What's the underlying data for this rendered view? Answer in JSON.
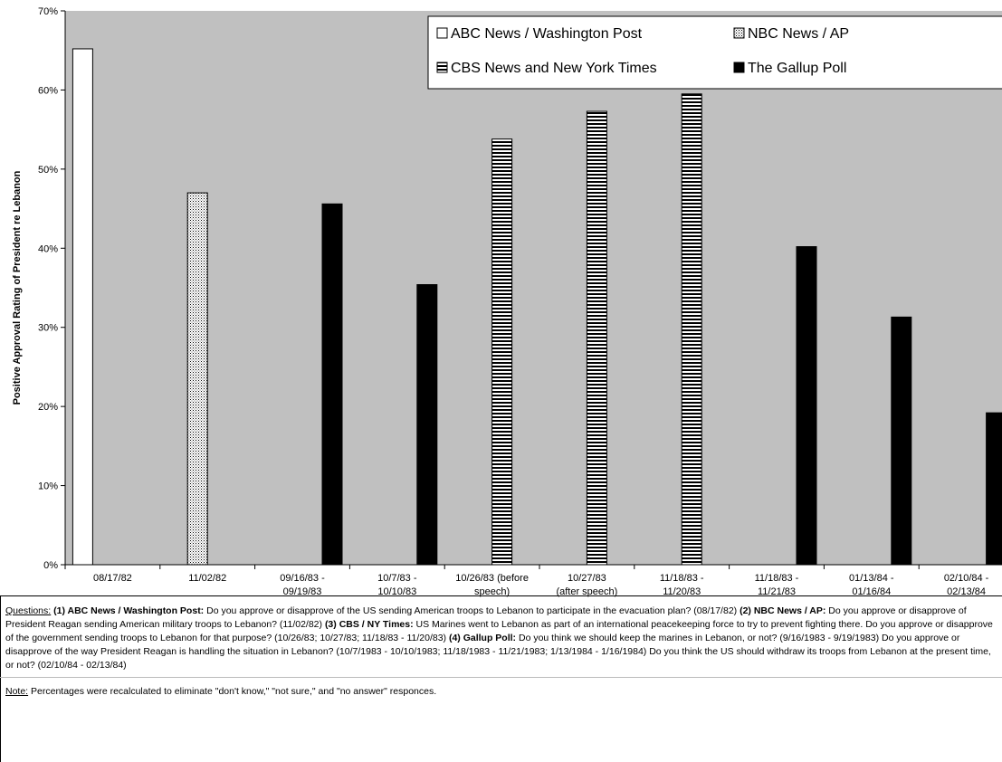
{
  "chart_data": {
    "type": "bar",
    "ylabel": "Positive Approval Rating of President re Lebanon",
    "ylim": [
      0,
      70
    ],
    "yticks": [
      "0%",
      "10%",
      "20%",
      "30%",
      "40%",
      "50%",
      "60%",
      "70%"
    ],
    "grid": false,
    "legend_position": "top-right",
    "categories": [
      [
        "08/17/82"
      ],
      [
        "11/02/82"
      ],
      [
        "09/16/83 -",
        "09/19/83"
      ],
      [
        "10/7/83 -",
        "10/10/83"
      ],
      [
        "10/26/83 (before",
        "speech)"
      ],
      [
        "10/27/83",
        "(after speech)"
      ],
      [
        "11/18/83 -",
        "11/20/83"
      ],
      [
        "11/18/83 -",
        "11/21/83"
      ],
      [
        "01/13/84 -",
        "01/16/84"
      ],
      [
        "02/10/84 -",
        "02/13/84"
      ]
    ],
    "series": [
      {
        "name": "ABC News / Washington Post",
        "pattern": "white",
        "values": [
          65.2,
          null,
          null,
          null,
          null,
          null,
          null,
          null,
          null,
          null
        ]
      },
      {
        "name": "NBC News / AP",
        "pattern": "dots",
        "values": [
          null,
          47.0,
          null,
          null,
          null,
          null,
          null,
          null,
          null,
          null
        ]
      },
      {
        "name": "CBS News and New York Times",
        "pattern": "stripes",
        "values": [
          null,
          null,
          null,
          null,
          53.8,
          57.3,
          59.5,
          null,
          null,
          null
        ]
      },
      {
        "name": "The Gallup Poll",
        "pattern": "black",
        "values": [
          null,
          null,
          45.6,
          35.4,
          null,
          null,
          null,
          40.2,
          31.3,
          19.2
        ]
      }
    ],
    "colors": {
      "plot_background": "#c0c0c0",
      "bar_black": "#000000",
      "bar_white": "#ffffff"
    }
  },
  "notes": {
    "questions_label": "Questions:",
    "q1_label": "(1)  ABC News / Washington Post:",
    "q1_text": "  Do you approve or disapprove of the US sending American troops to Lebanon to participate in the evacuation plan?  (08/17/82) ",
    "q2_label": "(2)  NBC News / AP:",
    "q2_text": "  Do you approve or disapprove of President Reagan sending American military troops to Lebanon?  (11/02/82) ",
    "q3_label": "(3)  CBS / NY Times:",
    "q3_text": "  US Marines went to Lebanon as part of an international peacekeeping force to try to prevent fighting there. Do you approve or disapprove of the government sending troops to Lebanon for that purpose?  (10/26/83; 10/27/83; 11/18/83 - 11/20/83) ",
    "q4_label": "(4)  Gallup Poll:",
    "q4_text": "  Do you think we should keep the marines in Lebanon, or not?  (9/16/1983 - 9/19/1983)  Do you approve or disapprove of the way President Reagan is handling the situation in Lebanon?  (10/7/1983 - 10/10/1983; 11/18/1983 - 11/21/1983;  1/13/1984 - 1/16/1984)  Do you think the US should withdraw its troops from Lebanon at the present time, or not?  (02/10/84 - 02/13/84)",
    "note_label": "Note:",
    "note_text": "  Percentages were recalculated to eliminate \"don't know,\" \"not sure,\" and \"no answer\" responces."
  }
}
